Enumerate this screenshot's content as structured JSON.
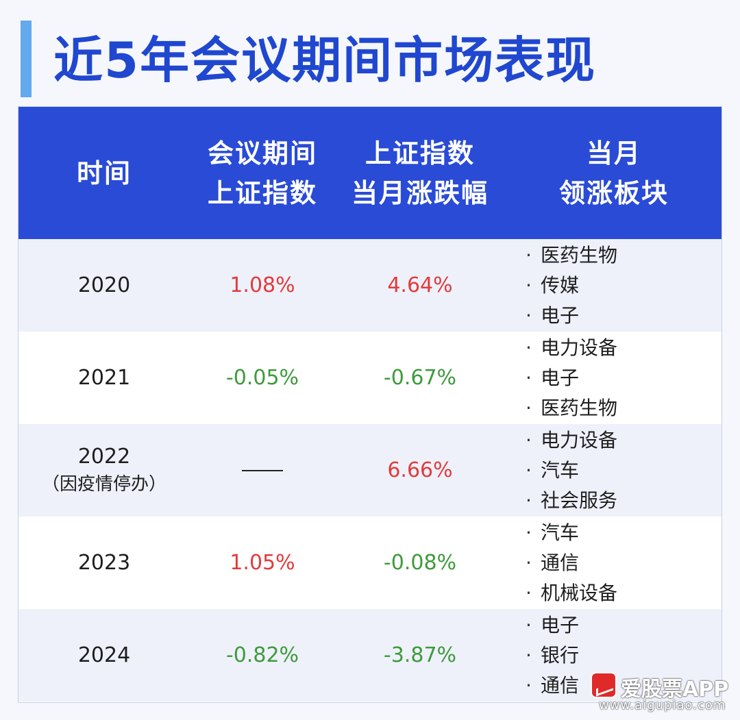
{
  "title": "近5年会议期间市场表现",
  "table": {
    "headers": [
      {
        "line1": "时间",
        "line2": ""
      },
      {
        "line1": "会议期间",
        "line2": "上证指数"
      },
      {
        "line1": "上证指数",
        "line2": "当月涨跌幅"
      },
      {
        "line1": "当月",
        "line2": "领涨板块"
      }
    ],
    "bullet": "·",
    "rows": [
      {
        "year": "2020",
        "year_note": "",
        "meeting": "1.08%",
        "meeting_color": "#e23b3b",
        "month": "4.64%",
        "month_color": "#e23b3b",
        "sectors": [
          "医药生物",
          "传媒",
          "电子"
        ]
      },
      {
        "year": "2021",
        "year_note": "",
        "meeting": "-0.05%",
        "meeting_color": "#3e9a3b",
        "month": "-0.67%",
        "month_color": "#3e9a3b",
        "sectors": [
          "电力设备",
          "电子",
          "医药生物"
        ]
      },
      {
        "year": "2022",
        "year_note": "（因疫情停办）",
        "meeting": "",
        "meeting_color": "#222222",
        "month": "6.66%",
        "month_color": "#e23b3b",
        "sectors": [
          "电力设备",
          "汽车",
          "社会服务"
        ]
      },
      {
        "year": "2023",
        "year_note": "",
        "meeting": "1.05%",
        "meeting_color": "#e23b3b",
        "month": "-0.08%",
        "month_color": "#3e9a3b",
        "sectors": [
          "汽车",
          "通信",
          "机械设备"
        ]
      },
      {
        "year": "2024",
        "year_note": "",
        "meeting": "-0.82%",
        "meeting_color": "#3e9a3b",
        "month": "-3.87%",
        "month_color": "#3e9a3b",
        "sectors": [
          "电子",
          "银行",
          "通信"
        ]
      }
    ]
  },
  "watermark": {
    "brand": "爱股票APP",
    "url": "www.aigupiao.com"
  },
  "colors": {
    "title": "#2047cf",
    "header_bg": "#2a4bd6",
    "positive": "#e23b3b",
    "negative": "#3e9a3b"
  }
}
